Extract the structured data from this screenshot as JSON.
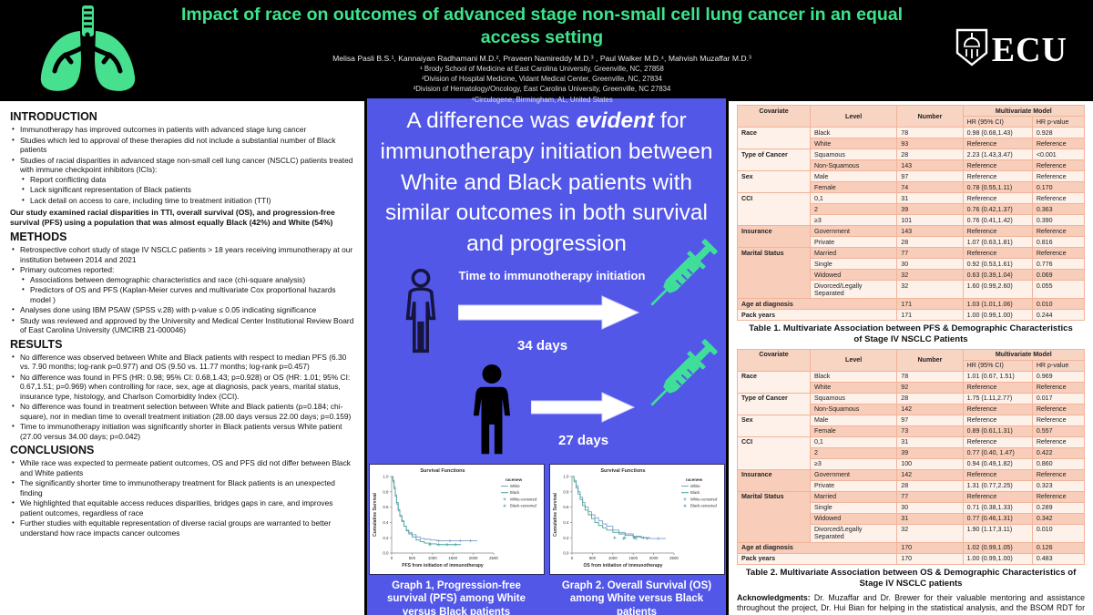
{
  "header": {
    "title": "Impact of race on outcomes of advanced stage non-small cell lung cancer in an equal access setting",
    "authors": "Melisa Pasli B.S.¹, Kannaiyan Radhamani M.D.², Praveen Namireddy M.D.³ , Paul Walker M.D.⁴, Mahvish Muzaffar M.D.³",
    "affiliations": [
      "¹ Brody School of Medicine at East Carolina University, Greenville, NC, 27858",
      "²Division of Hospital Medicine, Vidant Medical Center, Greenville, NC, 27834",
      "³Division of Hematology/Oncology, East Carolina University, Greenville, NC 27834",
      "⁴Circulogene, Birmingham, AL, United States"
    ],
    "logo_text": "ECU",
    "title_color": "#3ce48b",
    "lungs_icon_color": "#46e08e"
  },
  "left": {
    "sections": [
      {
        "heading": "INTRODUCTION",
        "items": [
          {
            "text": "Immunotherapy has improved outcomes in patients with advanced stage lung cancer"
          },
          {
            "text": "Studies which led to approval of these therapies did not include a substantial number of Black patients"
          },
          {
            "text": "Studies of racial disparities in advanced stage non-small cell lung cancer (NSCLC) patients treated with immune checkpoint inhibitors (ICIs):",
            "subs": [
              "Report conflicting data",
              "Lack significant representation of Black patients",
              "Lack detail on access to care, including time to treatment initiation (TTI)"
            ]
          }
        ],
        "paragraph": "Our study examined racial disparities in TTI, overall survival (OS), and progression-free survival (PFS) using a population that was almost equally Black (42%) and White (54%)"
      },
      {
        "heading": "METHODS",
        "items": [
          {
            "text": "Retrospective cohort study of stage IV NSCLC patients > 18 years receiving immunotherapy at our institution between 2014 and 2021"
          },
          {
            "text": "Primary outcomes reported:",
            "subs": [
              "Associations between demographic characteristics and race (chi-square analysis)",
              "Predictors of OS and PFS (Kaplan-Meier curves and multivariate Cox proportional hazards model )"
            ]
          },
          {
            "text": "Analyses done using IBM PSAW (SPSS v.28) with p-value ≤ 0.05 indicating significance"
          },
          {
            "text": "Study was reviewed and approved by the University and Medical Center Institutional Review Board of East Carolina University (UMCIRB 21-000046)"
          }
        ]
      },
      {
        "heading": "RESULTS",
        "items": [
          {
            "text": "No difference was observed between White and Black patients with respect to median PFS (6.30 vs. 7.90 months; log-rank p=0.977) and OS (9.50 vs. 11.77 months; log-rank p=0.457)"
          },
          {
            "text": "No difference was found in PFS (HR: 0.98; 95% CI: 0.68,1.43; p=0.928) or OS (HR: 1.01; 95% CI: 0.67,1.51; p=0.969) when controlling for race, sex, age at diagnosis, pack years, marital status, insurance type, histology, and Charlson Comorbidity Index (CCI)."
          },
          {
            "text": "No difference was found in treatment selection between White and Black patients (p=0.184; chi-square), nor in median time to overall treatment initiation (28.00 days versus 22.00 days; p=0.159)"
          },
          {
            "text": "Time to immunotherapy initiation was significantly shorter in Black patients versus White patient (27.00 versus 34.00 days; p=0.042)"
          }
        ]
      },
      {
        "heading": "CONCLUSIONS",
        "items": [
          {
            "text": "While race was expected to permeate patient outcomes, OS and PFS did not differ between Black and White patients"
          },
          {
            "text": "The significantly shorter time to immunotherapy treatment for Black patients is an unexpected finding"
          },
          {
            "text": "We highlighted that equitable access reduces disparities, bridges gaps in care, and improves patient outcomes, regardless of race"
          },
          {
            "text": "Further studies with equitable representation of diverse racial groups are warranted to better understand how race impacts cancer outcomes"
          }
        ]
      }
    ]
  },
  "middle": {
    "background_color": "#5257e8",
    "headline_pre": "A difference was ",
    "headline_em": "evident",
    "headline_post": " for immunotherapy initiation between White and Black patients with similar outcomes in both survival and progression",
    "infographic": {
      "label": "Time to immunotherapy initiation",
      "rows": [
        {
          "person": "white-outline",
          "days": "34 days"
        },
        {
          "person": "black-solid",
          "days": "27 days"
        }
      ],
      "syringe_color": "#3fdf9a"
    },
    "graph_captions": [
      "Graph 1, Progression-free survival (PFS) among White versus Black patients",
      "Graph 2. Overall Survival (OS) among White versus Black patients"
    ]
  },
  "right": {
    "table1": {
      "caption": "Table 1. Multivariate Association between PFS &  Demographic Characteristics of Stage IV NSCLC Patients",
      "columns": [
        "Covariate",
        "Level",
        "Number"
      ],
      "model_header": "Multivariate Model",
      "model_columns": [
        "HR (95% CI)",
        "HR p-value"
      ],
      "groups": [
        {
          "covariate": "Race",
          "rows": [
            [
              "Black",
              "78",
              "0.98 (0.68,1.43)",
              "0.928"
            ],
            [
              "White",
              "93",
              "Reference",
              "Reference"
            ]
          ]
        },
        {
          "covariate": "Type of Cancer",
          "rows": [
            [
              "Squamous",
              "28",
              "2.23 (1.43,3.47)",
              "<0.001"
            ],
            [
              "Non-Squamous",
              "143",
              "Reference",
              "Reference"
            ]
          ]
        },
        {
          "covariate": "Sex",
          "rows": [
            [
              "Male",
              "97",
              "Reference",
              "Reference"
            ],
            [
              "Female",
              "74",
              "0.78 (0.55,1.11)",
              "0.170"
            ]
          ]
        },
        {
          "covariate": "CCI",
          "rows": [
            [
              "0,1",
              "31",
              "Reference",
              "Reference"
            ],
            [
              "2",
              "39",
              "0.76 (0.42,1.37)",
              "0.363"
            ],
            [
              "≥3",
              "101",
              "0.76 (0.41,1.42)",
              "0.390"
            ]
          ]
        },
        {
          "covariate": "Insurance",
          "rows": [
            [
              "Government",
              "143",
              "Reference",
              "Reference"
            ],
            [
              "Private",
              "28",
              "1.07 (0.63,1.81)",
              "0.816"
            ]
          ]
        },
        {
          "covariate": "Marital Status",
          "rows": [
            [
              "Married",
              "77",
              "Reference",
              "Reference"
            ],
            [
              "Single",
              "30",
              "0.92 (0.53,1.61)",
              "0.776"
            ],
            [
              "Widowed",
              "32",
              "0.63 (0.39,1.04)",
              "0.069"
            ],
            [
              "Divorced/Legally Separated",
              "32",
              "1.60 (0.99,2.60)",
              "0.055"
            ]
          ]
        },
        {
          "covariate": "Age at diagnosis",
          "span": true,
          "rows": [
            [
              "",
              "171",
              "1.03 (1.01,1.06)",
              "0.010"
            ]
          ]
        },
        {
          "covariate": "Pack years",
          "span": true,
          "rows": [
            [
              "",
              "171",
              "1.00 (0.99,1.00)",
              "0.244"
            ]
          ]
        }
      ]
    },
    "table2": {
      "caption": "Table 2. Multivariate Association between OS &  Demographic Characteristics of Stage IV NSCLC patients",
      "columns": [
        "Covariate",
        "Level",
        "Number"
      ],
      "model_header": "Multivariate Model",
      "model_columns": [
        "HR (95% CI)",
        "HR p-value"
      ],
      "groups": [
        {
          "covariate": "Race",
          "rows": [
            [
              "Black",
              "78",
              "1.01 (0.67, 1.51)",
              "0.969"
            ],
            [
              "White",
              "92",
              "Reference",
              "Reference"
            ]
          ]
        },
        {
          "covariate": "Type of Cancer",
          "rows": [
            [
              "Squamous",
              "28",
              "1.75 (1.11,2.77)",
              "0.017"
            ],
            [
              "Non-Squamous",
              "142",
              "Reference",
              "Reference"
            ]
          ]
        },
        {
          "covariate": "Sex",
          "rows": [
            [
              "Male",
              "97",
              "Reference",
              "Reference"
            ],
            [
              "Female",
              "73",
              "0.89 (0.61,1.31)",
              "0.557"
            ]
          ]
        },
        {
          "covariate": "CCI",
          "rows": [
            [
              "0,1",
              "31",
              "Reference",
              "Reference"
            ],
            [
              "2",
              "39",
              "0.77 (0.40, 1.47)",
              "0.422"
            ],
            [
              "≥3",
              "100",
              "0.94 (0.49,1.82)",
              "0.860"
            ]
          ]
        },
        {
          "covariate": "Insurance",
          "rows": [
            [
              "Government",
              "142",
              "Reference",
              "Reference"
            ],
            [
              "Private",
              "28",
              "1.31 (0.77,2.25)",
              "0.323"
            ]
          ]
        },
        {
          "covariate": "Marital Status",
          "rows": [
            [
              "Married",
              "77",
              "Reference",
              "Reference"
            ],
            [
              "Single",
              "30",
              "0.71 (0.38,1.33)",
              "0.289"
            ],
            [
              "Widowed",
              "31",
              "0.77 (0.46,1.31)",
              "0.342"
            ],
            [
              "Divorced/Legally Separated",
              "32",
              "1.90 (1.17,3.11)",
              "0.010"
            ]
          ]
        },
        {
          "covariate": "Age at diagnosis",
          "span": true,
          "rows": [
            [
              "",
              "170",
              "1.02 (0.99,1.05)",
              "0.126"
            ]
          ]
        },
        {
          "covariate": "Pack years",
          "span": true,
          "rows": [
            [
              "",
              "170",
              "1.00 (0.99,1.00)",
              "0.483"
            ]
          ]
        }
      ]
    },
    "ack_label": "Acknowledgments:",
    "ack_text": "Dr. Muzaffar and Dr. Brewer for their valuable mentoring and assistance throughout the project, Dr. Hui Bian for helping in the statistical analysis, and the BSOM RDT for funding this research"
  },
  "chart_data": [
    {
      "type": "line",
      "title": "Survival Functions",
      "xlabel": "PFS from initiation of immunotherapy",
      "ylabel": "Cumulative Survival",
      "xlim": [
        0,
        2500
      ],
      "ylim": [
        0,
        1.0
      ],
      "xticks": [
        0,
        500,
        1000,
        1500,
        2000,
        2500
      ],
      "yticks": [
        0.0,
        0.2,
        0.4,
        0.6,
        0.8,
        1.0
      ],
      "legend_title": "racenew",
      "legend": [
        "White",
        "Black",
        "White-censored",
        "Black-censored"
      ],
      "legend_position": "right",
      "grid": false,
      "series": [
        {
          "name": "White",
          "color": "#7c9fc7",
          "x": [
            0,
            30,
            60,
            90,
            120,
            160,
            200,
            250,
            300,
            360,
            420,
            500,
            600,
            700,
            800,
            950,
            1100,
            1300,
            1500,
            1700,
            1900,
            2100
          ],
          "y": [
            1.0,
            0.93,
            0.84,
            0.74,
            0.64,
            0.55,
            0.48,
            0.41,
            0.35,
            0.3,
            0.27,
            0.24,
            0.21,
            0.19,
            0.18,
            0.17,
            0.16,
            0.16,
            0.16,
            0.16,
            0.16,
            0.16
          ]
        },
        {
          "name": "Black",
          "color": "#4aa39b",
          "x": [
            0,
            30,
            60,
            90,
            120,
            160,
            200,
            250,
            300,
            360,
            420,
            500,
            600,
            700,
            800,
            950,
            1100,
            1300,
            1500,
            1700
          ],
          "y": [
            1.0,
            0.95,
            0.86,
            0.76,
            0.66,
            0.57,
            0.49,
            0.42,
            0.35,
            0.29,
            0.25,
            0.21,
            0.17,
            0.15,
            0.13,
            0.12,
            0.11,
            0.11,
            0.11,
            0.11
          ]
        }
      ]
    },
    {
      "type": "line",
      "title": "Survival Functions",
      "xlabel": "OS from initiation of immunotherapy",
      "ylabel": "Cumulative Survival",
      "xlim": [
        0,
        2500
      ],
      "ylim": [
        0,
        1.0
      ],
      "xticks": [
        0,
        500,
        1000,
        1500,
        2000,
        2500
      ],
      "yticks": [
        0.0,
        0.2,
        0.4,
        0.6,
        0.8,
        1.0
      ],
      "legend_title": "racenew",
      "legend": [
        "White",
        "Black",
        "White-censored",
        "Black-censored"
      ],
      "legend_position": "right",
      "grid": false,
      "series": [
        {
          "name": "White",
          "color": "#7c9fc7",
          "x": [
            0,
            50,
            100,
            150,
            200,
            260,
            320,
            400,
            480,
            560,
            650,
            750,
            850,
            1000,
            1150,
            1300,
            1500,
            1700,
            1900,
            2100,
            2300
          ],
          "y": [
            1.0,
            0.95,
            0.88,
            0.8,
            0.73,
            0.66,
            0.6,
            0.54,
            0.5,
            0.46,
            0.42,
            0.38,
            0.35,
            0.3,
            0.27,
            0.25,
            0.22,
            0.2,
            0.19,
            0.19,
            0.19
          ]
        },
        {
          "name": "Black",
          "color": "#4aa39b",
          "x": [
            0,
            50,
            100,
            150,
            200,
            260,
            320,
            400,
            480,
            560,
            650,
            750,
            850,
            1000,
            1150,
            1300,
            1500,
            1700,
            1900
          ],
          "y": [
            1.0,
            0.93,
            0.85,
            0.77,
            0.7,
            0.62,
            0.56,
            0.5,
            0.45,
            0.4,
            0.36,
            0.33,
            0.3,
            0.27,
            0.25,
            0.23,
            0.21,
            0.2,
            0.2
          ]
        }
      ]
    }
  ]
}
